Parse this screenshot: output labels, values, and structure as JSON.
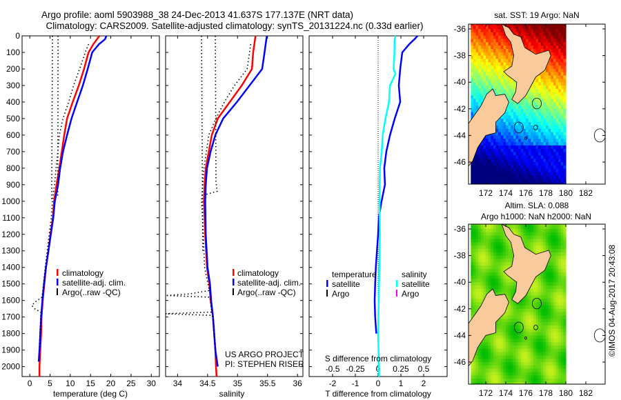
{
  "title_line1": "Argo profile: aoml 5903988_38 24-Dec-2013 41.637S 177.137E (NRT data)",
  "title_line2": "Climatology: CARS2009. Satellite-adjusted climatology: synTS_20131224.nc (0.33d earlier)",
  "colors": {
    "climatology": "#ff0000",
    "satellite": "#0000ff",
    "argo": "#000000",
    "sal_satellite": "#00ffff",
    "sal_argo": "#ff00ff"
  },
  "chart_data": [
    {
      "type": "line",
      "xlabel": "temperature (deg C)",
      "ylabel": "",
      "xlim": [
        -1.9,
        32
      ],
      "ylim": [
        2060,
        0
      ],
      "xticks": [
        "0",
        "5",
        "10",
        "15",
        "20",
        "25",
        "30"
      ],
      "yticks": [
        "0",
        "100",
        "200",
        "300",
        "400",
        "500",
        "600",
        "700",
        "800",
        "900",
        "1000",
        "1100",
        "1200",
        "1300",
        "1400",
        "1500",
        "1600",
        "1700",
        "1800",
        "1900",
        "2000"
      ],
      "legend": [
        "climatology",
        "satellite-adj. clim.",
        "Argo(..raw -QC)"
      ],
      "series": [
        {
          "name": "climatology",
          "depth": [
            0,
            50,
            100,
            200,
            300,
            400,
            500,
            600,
            700,
            800,
            900,
            1000,
            1100,
            1200,
            1300,
            1400,
            1500,
            1600,
            1700,
            1800,
            1900,
            2000,
            2060
          ],
          "values": [
            17.2,
            15.7,
            14.5,
            13.4,
            12.1,
            10.6,
            9.2,
            8.5,
            7.9,
            7.3,
            6.6,
            6.0,
            5.7,
            5.1,
            4.6,
            4.0,
            3.6,
            3.2,
            2.9,
            2.8,
            2.6,
            2.4,
            2.4
          ]
        },
        {
          "name": "satellite-adj. clim.",
          "depth": [
            0,
            20,
            50,
            100,
            200,
            300,
            400,
            500,
            600,
            700,
            800,
            900,
            1000,
            1100,
            1200,
            1300,
            1400,
            1500,
            1600,
            1700,
            1800,
            1900,
            1970
          ],
          "values": [
            18.9,
            18.6,
            17.1,
            15.4,
            14.3,
            13.1,
            11.7,
            10.3,
            9.2,
            8.2,
            7.5,
            7.0,
            6.2,
            5.8,
            5.2,
            4.6,
            4.0,
            3.5,
            3.1,
            2.8,
            2.6,
            2.4,
            2.2
          ]
        },
        {
          "name": "Argo(..raw -QC)",
          "depth": [
            50,
            100,
            200,
            300,
            400,
            500,
            600,
            700,
            800,
            900,
            1000,
            1100,
            1200,
            1300,
            1400,
            1500,
            1580,
            1610,
            1630,
            1650,
            1670,
            1700,
            1800,
            1900
          ],
          "values": [
            14.5,
            13.7,
            12.3,
            10.8,
            9.6,
            8.2,
            7.3,
            6.9,
            6.5,
            6.1,
            5.6,
            5.3,
            4.8,
            4.3,
            3.8,
            3.4,
            3.0,
            1.3,
            0.5,
            1.2,
            2.7,
            2.7,
            2.5,
            2.4
          ]
        },
        {
          "name": "argo-range-low",
          "depth": [
            0,
            1000
          ],
          "values": [
            5.6,
            5.4
          ]
        },
        {
          "name": "argo-range-high",
          "depth": [
            0,
            980
          ],
          "values": [
            7.0,
            6.9
          ]
        }
      ]
    },
    {
      "type": "line",
      "xlabel": "salinity",
      "xlim": [
        33.8,
        36.09
      ],
      "ylim": [
        2060,
        0
      ],
      "xticks": [
        "34",
        "34.5",
        "35",
        "35.5",
        "36"
      ],
      "legend": [
        "climatology",
        "satellite-adj. clim.",
        "Argo(..raw -QC)"
      ],
      "annotations": [
        "US ARGO PROJECT",
        "PI: STEPHEN RISER"
      ],
      "series": [
        {
          "name": "climatology",
          "depth": [
            0,
            100,
            200,
            300,
            400,
            500,
            600,
            700,
            800,
            900,
            1000,
            1200,
            1400,
            1500,
            1600,
            1700,
            1800,
            1900,
            2000,
            2060
          ],
          "values": [
            35.3,
            35.26,
            35.24,
            35.07,
            34.87,
            34.67,
            34.57,
            34.52,
            34.47,
            34.45,
            34.44,
            34.46,
            34.49,
            34.53,
            34.55,
            34.59,
            34.61,
            34.63,
            34.64,
            34.65
          ]
        },
        {
          "name": "satellite-adj. clim.",
          "depth": [
            0,
            20,
            100,
            200,
            300,
            400,
            500,
            600,
            700,
            800,
            900,
            1000,
            1200,
            1400,
            1500,
            1600,
            1700,
            1800,
            1900,
            2000
          ],
          "values": [
            35.49,
            35.48,
            35.45,
            35.41,
            35.2,
            34.99,
            34.76,
            34.63,
            34.55,
            34.49,
            34.47,
            34.46,
            34.47,
            34.5,
            34.54,
            34.56,
            34.59,
            34.61,
            34.63,
            34.67
          ]
        },
        {
          "name": "Argo(..raw -QC)",
          "depth": [
            50,
            200,
            300,
            400,
            500,
            600,
            800,
            1000,
            1200,
            1400,
            1540,
            1560,
            1570,
            1580,
            1670,
            1680,
            1690,
            1800,
            1900
          ],
          "values": [
            35.22,
            35.16,
            34.95,
            34.78,
            34.64,
            34.52,
            34.44,
            34.4,
            34.43,
            34.45,
            34.53,
            34.2,
            33.8,
            34.54,
            34.57,
            33.8,
            34.58,
            34.61,
            34.63
          ]
        },
        {
          "name": "argo-range-low",
          "depth": [
            0,
            1300
          ],
          "values": [
            34.4,
            34.42
          ]
        },
        {
          "name": "argo-range-high",
          "depth": [
            0,
            880,
            940,
            960
          ],
          "values": [
            34.63,
            34.64,
            34.66,
            34.46
          ]
        }
      ]
    },
    {
      "type": "line",
      "xlabel": "T difference from climatology",
      "xlabel2": "S difference from climatology",
      "xlim": [
        -3.03,
        3.03
      ],
      "xlim_s": [
        -0.758,
        0.758
      ],
      "ylim": [
        2060,
        0
      ],
      "xticks": [
        "-2",
        "-1",
        "0",
        "1",
        "2"
      ],
      "xticks_s": [
        "-0.5",
        "-0.25",
        "0",
        "0.25",
        "0.5"
      ],
      "legend_headers": [
        "temperature",
        "salinity"
      ],
      "legend": [
        "satellite",
        "Argo",
        "satellite",
        "Argo"
      ],
      "series": [
        {
          "name": "temperature satellite",
          "axis": "T",
          "depth": [
            0,
            20,
            50,
            100,
            200,
            300,
            400,
            500,
            600,
            700,
            800,
            900,
            1000,
            1100,
            1200,
            1300,
            1400,
            1500,
            1600,
            1700,
            1800
          ],
          "values": [
            1.73,
            1.6,
            1.37,
            1.06,
            0.97,
            0.91,
            0.97,
            0.73,
            0.52,
            0.36,
            0.27,
            0.3,
            0.15,
            0.03,
            0.0,
            -0.05,
            -0.1,
            -0.13,
            -0.15,
            -0.13,
            -0.08
          ]
        },
        {
          "name": "salinity satellite",
          "axis": "S",
          "depth": [
            0,
            30,
            100,
            200,
            230,
            300,
            400,
            500,
            600,
            700,
            800,
            1000,
            1200,
            1500,
            1800,
            2000,
            2060
          ],
          "values": [
            0.19,
            0.18,
            0.18,
            0.17,
            0.19,
            0.13,
            0.12,
            0.08,
            0.05,
            0.04,
            0.02,
            0.015,
            0.02,
            0.01,
            0.0,
            0.01,
            0.01
          ]
        }
      ]
    }
  ],
  "maps": [
    {
      "title": "sat. SST: 19 Argo: NaN",
      "lat_ticks": [
        "-36",
        "-38",
        "-40",
        "-42",
        "-44",
        "-46"
      ],
      "lon_ticks": [
        "172",
        "174",
        "176",
        "178",
        "180",
        "182"
      ]
    },
    {
      "title": "Altim. SLA: 0.088",
      "subtitle": "Argo h1000: NaN h2000: NaN",
      "lat_ticks": [
        "-36",
        "-38",
        "-40",
        "-42",
        "-44",
        "-46"
      ],
      "lon_ticks": [
        "172",
        "174",
        "176",
        "178",
        "180",
        "182"
      ]
    }
  ],
  "credit": "©IMOS 04-Aug-2017 20:43:08"
}
